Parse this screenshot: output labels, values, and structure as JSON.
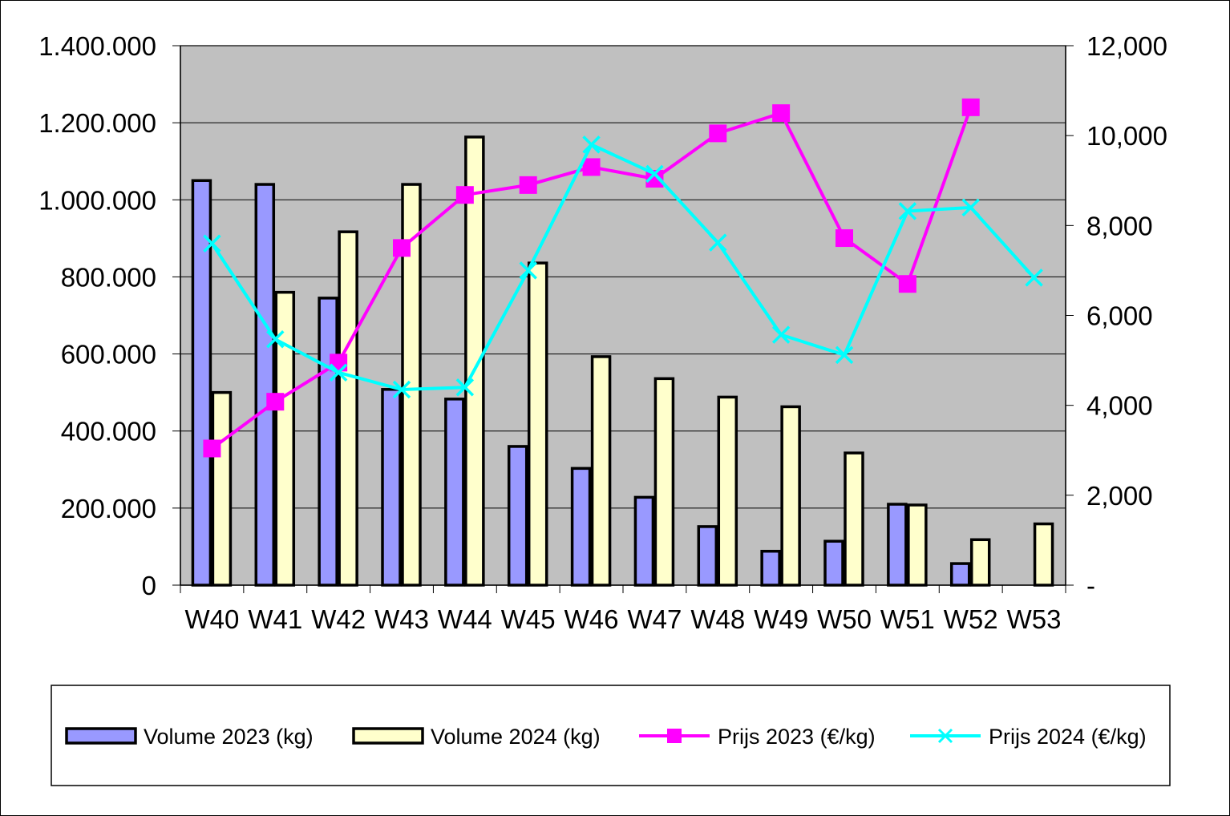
{
  "chart_data": {
    "type": "bar",
    "categories": [
      "W40",
      "W41",
      "W42",
      "W43",
      "W44",
      "W45",
      "W46",
      "W47",
      "W48",
      "W49",
      "W50",
      "W51",
      "W52",
      "W53"
    ],
    "bar_series": [
      {
        "name": "Volume 2023 (kg)",
        "color": "#9999ff",
        "values": [
          1050000,
          1040000,
          745000,
          508000,
          483000,
          360000,
          303000,
          228000,
          152000,
          88000,
          114000,
          210000,
          56000,
          null
        ]
      },
      {
        "name": "Volume 2024 (kg)",
        "color": "#ffffcc",
        "values": [
          500000,
          760000,
          917000,
          1040000,
          1163000,
          836000,
          593000,
          536000,
          488000,
          463000,
          343000,
          208000,
          118000,
          159000
        ]
      }
    ],
    "line_series": [
      {
        "name": "Prijs 2023 (€/kg)",
        "color": "#ff00ff",
        "marker": "square",
        "values": [
          3.04,
          4.08,
          4.95,
          7.5,
          8.68,
          8.9,
          9.3,
          9.04,
          10.05,
          10.5,
          7.72,
          6.7,
          10.63,
          null
        ]
      },
      {
        "name": "Prijs 2024 (€/kg)",
        "color": "#00ffff",
        "marker": "x",
        "values": [
          7.6,
          5.47,
          4.73,
          4.35,
          4.4,
          7.0,
          9.8,
          9.15,
          7.62,
          5.57,
          5.12,
          8.32,
          8.4,
          6.84
        ]
      }
    ],
    "y_left": {
      "min": 0,
      "max": 1400000,
      "ticks": [
        "0",
        "200.000",
        "400.000",
        "600.000",
        "800.000",
        "1.000.000",
        "1.200.000",
        "1.400.000"
      ]
    },
    "y_right": {
      "min": 0,
      "max": 12,
      "ticks": [
        "-",
        "2,000",
        "4,000",
        "6,000",
        "8,000",
        "10,000",
        "12,000"
      ]
    },
    "plot_background": "#c0c0c0",
    "grid": true,
    "legend_position": "bottom"
  }
}
